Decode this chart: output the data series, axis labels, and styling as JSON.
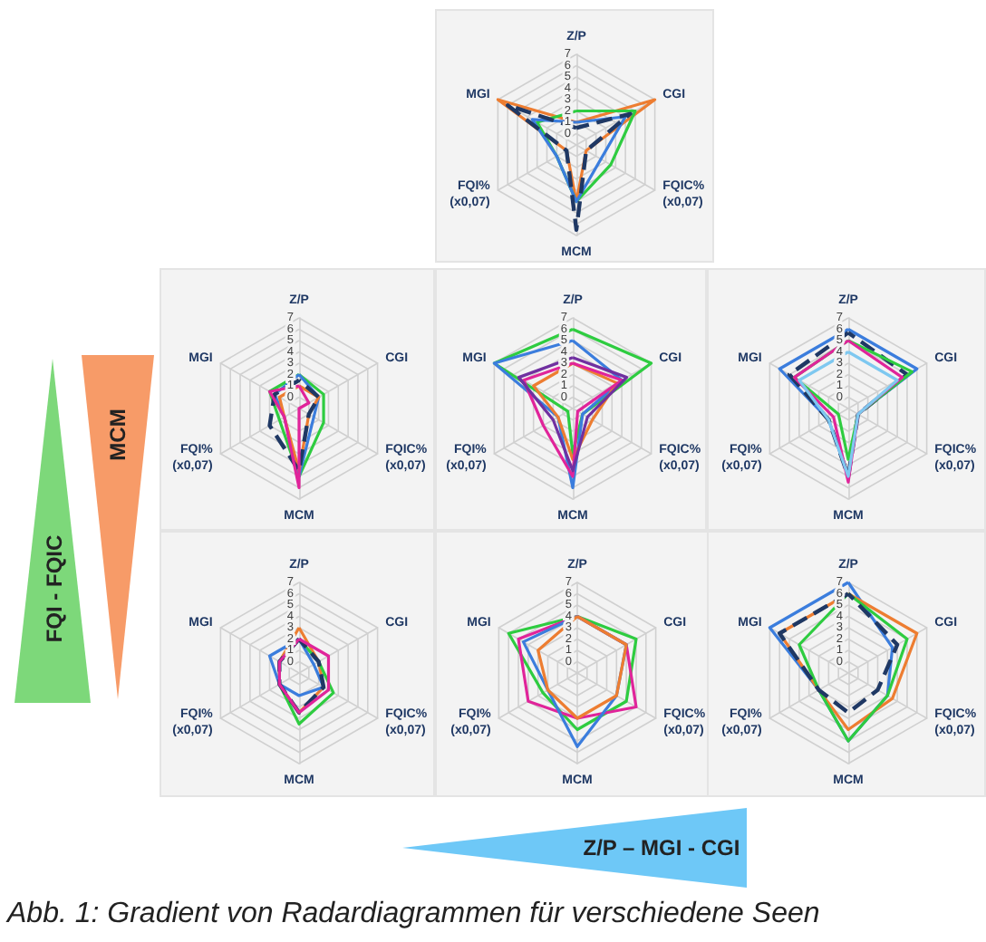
{
  "chart_data": [
    {
      "type": "radar",
      "categories": [
        "Z/P",
        "CGI",
        "FQIC%\n(x0,07)",
        "MCM",
        "FQI%\n(x0,07)",
        "MGI"
      ],
      "ylim": [
        -1,
        7
      ],
      "yticks": [
        0,
        1,
        2,
        3,
        4,
        5,
        6,
        7
      ],
      "grid": true,
      "marker": "none",
      "series": [
        {
          "color": "#ed7d31",
          "values": [
            1,
            7,
            0,
            4,
            0,
            7
          ]
        },
        {
          "color": "#2ecc40",
          "values": [
            2,
            5,
            2.5,
            4,
            1,
            3
          ]
        },
        {
          "color": "#3b7ddd",
          "values": [
            1,
            4,
            1.5,
            4,
            1,
            3.5
          ]
        },
        {
          "color": "#1f3864",
          "line_style": "dashed",
          "values": [
            0.5,
            4.5,
            0,
            6.5,
            0,
            6
          ]
        }
      ]
    },
    {
      "type": "radar",
      "categories": [
        "Z/P",
        "CGI",
        "FQIC%\n(x0,07)",
        "MCM",
        "FQI%\n(x0,07)",
        "MGI"
      ],
      "ylim": [
        -1,
        7
      ],
      "yticks": [
        0,
        1,
        2,
        3,
        4,
        5,
        6,
        7
      ],
      "grid": true,
      "marker": "none",
      "series": [
        {
          "color": "#2ecc40",
          "values": [
            2,
            1.5,
            1.5,
            5,
            1,
            2
          ]
        },
        {
          "color": "#3b7ddd",
          "values": [
            2,
            1,
            0.5,
            5,
            0.5,
            1.5
          ]
        },
        {
          "color": "#ed7d31",
          "values": [
            1,
            1,
            0,
            4.5,
            0.5,
            1
          ]
        },
        {
          "color": "#1f3864",
          "line_style": "dashed",
          "values": [
            1.5,
            1,
            0,
            4.5,
            2,
            1.5
          ]
        },
        {
          "color": "#e0249a",
          "values": [
            1,
            0,
            -1,
            6,
            0.5,
            2
          ]
        }
      ]
    },
    {
      "type": "radar",
      "categories": [
        "Z/P",
        "CGI",
        "FQIC%\n(x0,07)",
        "MCM",
        "FQI%\n(x0,07)",
        "MGI"
      ],
      "ylim": [
        -1,
        7
      ],
      "yticks": [
        0,
        1,
        2,
        3,
        4,
        5,
        6,
        7
      ],
      "grid": true,
      "marker": "none",
      "series": [
        {
          "color": "#2ecc40",
          "values": [
            6,
            7,
            0,
            3,
            -0.5,
            7
          ]
        },
        {
          "color": "#3b7ddd",
          "values": [
            5,
            4,
            0,
            6,
            0.5,
            7
          ]
        },
        {
          "color": "#ed7d31",
          "values": [
            3,
            3.5,
            1,
            3.5,
            0.5,
            3
          ]
        },
        {
          "color": "#e0249a",
          "values": [
            3,
            4,
            -0.5,
            5,
            2,
            4
          ]
        },
        {
          "color": "#7030a0",
          "values": [
            3.5,
            4.5,
            0.5,
            4.5,
            1,
            4.5
          ]
        }
      ]
    },
    {
      "type": "radar",
      "categories": [
        "Z/P",
        "CGI",
        "FQIC%\n(x0,07)",
        "MCM",
        "FQI%\n(x0,07)",
        "MGI"
      ],
      "ylim": [
        -1,
        7
      ],
      "yticks": [
        0,
        1,
        2,
        3,
        4,
        5,
        6,
        7
      ],
      "grid": true,
      "marker": "none",
      "series": [
        {
          "color": "#3b7ddd",
          "values": [
            6,
            6,
            0,
            5,
            1,
            6
          ]
        },
        {
          "color": "#1f3864",
          "line_style": "dashed",
          "values": [
            5.7,
            5,
            0,
            5,
            1,
            5
          ]
        },
        {
          "color": "#2ecc40",
          "values": [
            5,
            5.5,
            0,
            3.5,
            0,
            4.5
          ]
        },
        {
          "color": "#e0249a",
          "values": [
            5,
            4.5,
            0,
            5.5,
            0.5,
            4.5
          ]
        },
        {
          "color": "#7ec8f0",
          "values": [
            4,
            4,
            0,
            5,
            1,
            4
          ]
        }
      ]
    },
    {
      "type": "radar",
      "categories": [
        "Z/P",
        "CGI",
        "FQIC%\n(x0,07)",
        "MCM",
        "FQI%\n(x0,07)",
        "MGI"
      ],
      "ylim": [
        -1,
        7
      ],
      "yticks": [
        0,
        1,
        2,
        3,
        4,
        5,
        6,
        7
      ],
      "grid": true,
      "marker": "none",
      "series": [
        {
          "color": "#ed7d31",
          "values": [
            3,
            1,
            1.5,
            2.5,
            1,
            1
          ]
        },
        {
          "color": "#2ecc40",
          "values": [
            2,
            1,
            2.5,
            3.5,
            1,
            1
          ]
        },
        {
          "color": "#3b7ddd",
          "values": [
            2,
            0.5,
            1.5,
            1,
            1,
            2
          ]
        },
        {
          "color": "#1f3864",
          "line_style": "dashed",
          "values": [
            2,
            1,
            1.5,
            2.5,
            1,
            1
          ]
        },
        {
          "color": "#e0249a",
          "values": [
            2,
            2,
            2,
            2.5,
            1,
            1
          ]
        }
      ]
    },
    {
      "type": "radar",
      "categories": [
        "Z/P",
        "CGI",
        "FQIC%\n(x0,07)",
        "MCM",
        "FQI%\n(x0,07)",
        "MGI"
      ],
      "ylim": [
        -1,
        7
      ],
      "yticks": [
        0,
        1,
        2,
        3,
        4,
        5,
        6,
        7
      ],
      "grid": true,
      "marker": "none",
      "series": [
        {
          "color": "#2ecc40",
          "values": [
            4,
            5,
            4,
            4,
            2.5,
            6
          ]
        },
        {
          "color": "#e0249a",
          "values": [
            4,
            4,
            5,
            3,
            4,
            5
          ]
        },
        {
          "color": "#3b7ddd",
          "values": [
            4,
            4,
            3,
            5.5,
            2,
            4.5
          ]
        },
        {
          "color": "#ed7d31",
          "values": [
            4,
            4,
            3,
            3,
            2,
            3
          ]
        }
      ]
    },
    {
      "type": "radar",
      "categories": [
        "Z/P",
        "CGI",
        "FQIC%\n(x0,07)",
        "MCM",
        "FQI%\n(x0,07)",
        "MGI"
      ],
      "ylim": [
        -1,
        7
      ],
      "yticks": [
        0,
        1,
        2,
        3,
        4,
        5,
        6,
        7
      ],
      "grid": true,
      "marker": "none",
      "series": [
        {
          "color": "#3b7ddd",
          "values": [
            7,
            3.5,
            3,
            5,
            2,
            7
          ]
        },
        {
          "color": "#ed7d31",
          "values": [
            6,
            6,
            3.5,
            4,
            2,
            6
          ]
        },
        {
          "color": "#2ecc40",
          "values": [
            6,
            5,
            3,
            5,
            2,
            4
          ]
        },
        {
          "color": "#1f3864",
          "line_style": "dashed",
          "values": [
            6,
            4,
            2,
            2.5,
            2,
            6
          ]
        }
      ]
    },
    {
      "type": "other",
      "annotations": [
        "MCM",
        "FQI - FQIC",
        "Z/P – MGI - CGI",
        "Abb. 1: Gradient von Radardiagrammen für verschiedene Seen"
      ]
    }
  ]
}
